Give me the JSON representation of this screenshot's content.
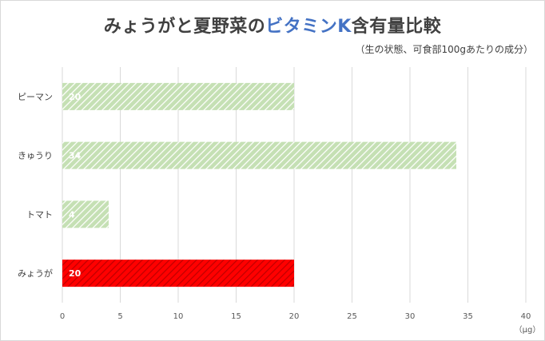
{
  "title": {
    "part1": "みょうがと夏野菜の",
    "highlight": "ビタミンK",
    "part2": "含有量比較"
  },
  "subtitle": "（生の状態、可食部100gあたりの成分）",
  "colors": {
    "default_bar": "#c5e0b4",
    "default_bar_stripe": "#ffffff",
    "highlight_bar": "#ff0000",
    "highlight_bar_stripe": "#c00000",
    "title_highlight": "#4472c4",
    "grid": "#d9d9d9"
  },
  "chart_data": {
    "type": "bar",
    "orientation": "horizontal",
    "title": "みょうがと夏野菜のビタミンK含有量比較",
    "subtitle": "（生の状態、可食部100gあたりの成分）",
    "categories": [
      "ピーマン",
      "きゅうり",
      "トマト",
      "みょうが"
    ],
    "values": [
      20,
      34,
      4,
      20
    ],
    "highlighted": [
      false,
      false,
      false,
      true
    ],
    "xlim": [
      0,
      40
    ],
    "xticks": [
      0,
      5,
      10,
      15,
      20,
      25,
      30,
      35,
      40
    ],
    "unit": "（μg）",
    "grid": true,
    "legend": "none"
  }
}
